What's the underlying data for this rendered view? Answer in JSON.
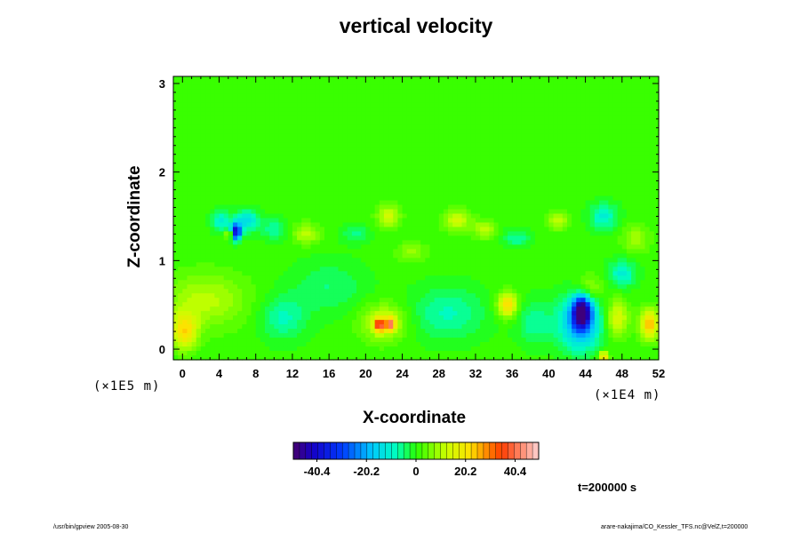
{
  "chart_data": {
    "type": "heatmap",
    "title": "vertical velocity",
    "xlabel": "X-coordinate",
    "ylabel": "Z-coordinate",
    "x_unit_label": "(×1E4 m)",
    "y_unit_label": "(×1E5 m)",
    "xlim": [
      -1,
      52
    ],
    "ylim": [
      -0.12,
      3.08
    ],
    "x_ticks": [
      "0",
      "4",
      "8",
      "12",
      "16",
      "20",
      "24",
      "28",
      "32",
      "36",
      "40",
      "44",
      "48",
      "52"
    ],
    "x_tick_values": [
      0,
      4,
      8,
      12,
      16,
      20,
      24,
      28,
      32,
      36,
      40,
      44,
      48,
      52
    ],
    "y_ticks": [
      "0",
      "1",
      "2",
      "3"
    ],
    "y_tick_values": [
      0,
      1,
      2,
      3
    ],
    "colorbar": {
      "min": -50,
      "max": 50,
      "tick_labels": [
        "-40.4",
        "-20.2",
        "0",
        "20.2",
        "40.4"
      ],
      "tick_values": [
        -40.4,
        -20.2,
        0,
        20.2,
        40.4
      ],
      "levels": 40
    },
    "background_value": 1,
    "features": [
      {
        "x": 5.8,
        "z": 1.32,
        "rx": 0.6,
        "rz": 0.09,
        "value": -44
      },
      {
        "x": 5.2,
        "z": 1.3,
        "rx": 0.5,
        "rz": 0.05,
        "value": 20
      },
      {
        "x": 7.0,
        "z": 1.45,
        "rx": 1.3,
        "rz": 0.12,
        "value": -15
      },
      {
        "x": 4.2,
        "z": 1.45,
        "rx": 1.0,
        "rz": 0.12,
        "value": -12
      },
      {
        "x": 43.6,
        "z": 0.42,
        "rx": 0.9,
        "rz": 0.16,
        "value": -46
      },
      {
        "x": 43.4,
        "z": 0.3,
        "rx": 2.2,
        "rz": 0.3,
        "value": -25
      },
      {
        "x": 21.5,
        "z": 0.27,
        "rx": 0.5,
        "rz": 0.07,
        "value": 32
      },
      {
        "x": 22.7,
        "z": 0.28,
        "rx": 0.5,
        "rz": 0.07,
        "value": 32
      },
      {
        "x": 22.0,
        "z": 0.3,
        "rx": 2.4,
        "rz": 0.2,
        "value": 14
      },
      {
        "x": 35.5,
        "z": 0.5,
        "rx": 1.1,
        "rz": 0.14,
        "value": 22
      },
      {
        "x": 51.0,
        "z": 0.28,
        "rx": 1.0,
        "rz": 0.16,
        "value": 24
      },
      {
        "x": 0.2,
        "z": 0.2,
        "rx": 1.4,
        "rz": 0.2,
        "value": 20
      },
      {
        "x": 46.0,
        "z": -0.08,
        "rx": 0.5,
        "rz": 0.05,
        "value": 25
      },
      {
        "x": 2.5,
        "z": 0.55,
        "rx": 4.5,
        "rz": 0.3,
        "value": 10
      },
      {
        "x": 11.0,
        "z": 0.35,
        "rx": 2.5,
        "rz": 0.25,
        "value": -9
      },
      {
        "x": 29.0,
        "z": 0.4,
        "rx": 4.0,
        "rz": 0.3,
        "value": -9
      },
      {
        "x": 38.5,
        "z": 0.3,
        "rx": 2.0,
        "rz": 0.25,
        "value": -8
      },
      {
        "x": 16.0,
        "z": 0.7,
        "rx": 4.0,
        "rz": 0.3,
        "value": -6
      },
      {
        "x": 22.5,
        "z": 1.5,
        "rx": 1.2,
        "rz": 0.12,
        "value": 13
      },
      {
        "x": 30.0,
        "z": 1.45,
        "rx": 1.5,
        "rz": 0.12,
        "value": 12
      },
      {
        "x": 13.5,
        "z": 1.3,
        "rx": 1.5,
        "rz": 0.12,
        "value": 10
      },
      {
        "x": 33.0,
        "z": 1.35,
        "rx": 1.2,
        "rz": 0.1,
        "value": 11
      },
      {
        "x": 41.0,
        "z": 1.45,
        "rx": 1.2,
        "rz": 0.1,
        "value": 11
      },
      {
        "x": 46.0,
        "z": 1.5,
        "rx": 1.5,
        "rz": 0.15,
        "value": -12
      },
      {
        "x": 10.0,
        "z": 1.35,
        "rx": 1.5,
        "rz": 0.12,
        "value": -8
      },
      {
        "x": 19.0,
        "z": 1.3,
        "rx": 1.5,
        "rz": 0.1,
        "value": -7
      },
      {
        "x": 36.5,
        "z": 1.25,
        "rx": 1.5,
        "rz": 0.1,
        "value": -8
      },
      {
        "x": 25.0,
        "z": 1.1,
        "rx": 1.5,
        "rz": 0.1,
        "value": 8
      },
      {
        "x": 49.5,
        "z": 1.25,
        "rx": 1.5,
        "rz": 0.15,
        "value": 8
      },
      {
        "x": 48.0,
        "z": 0.85,
        "rx": 1.5,
        "rz": 0.15,
        "value": -12
      },
      {
        "x": 47.5,
        "z": 0.35,
        "rx": 1.2,
        "rz": 0.2,
        "value": 14
      },
      {
        "x": 44.5,
        "z": 0.7,
        "rx": 1.5,
        "rz": 0.15,
        "value": 8
      }
    ]
  },
  "time_label": "t=200000 s",
  "footer_left": "/usr/bin/gpview 2005-08-30",
  "footer_right": "arare-nakajima/CO_Kessler_TFS.nc@VelZ,t=200000"
}
